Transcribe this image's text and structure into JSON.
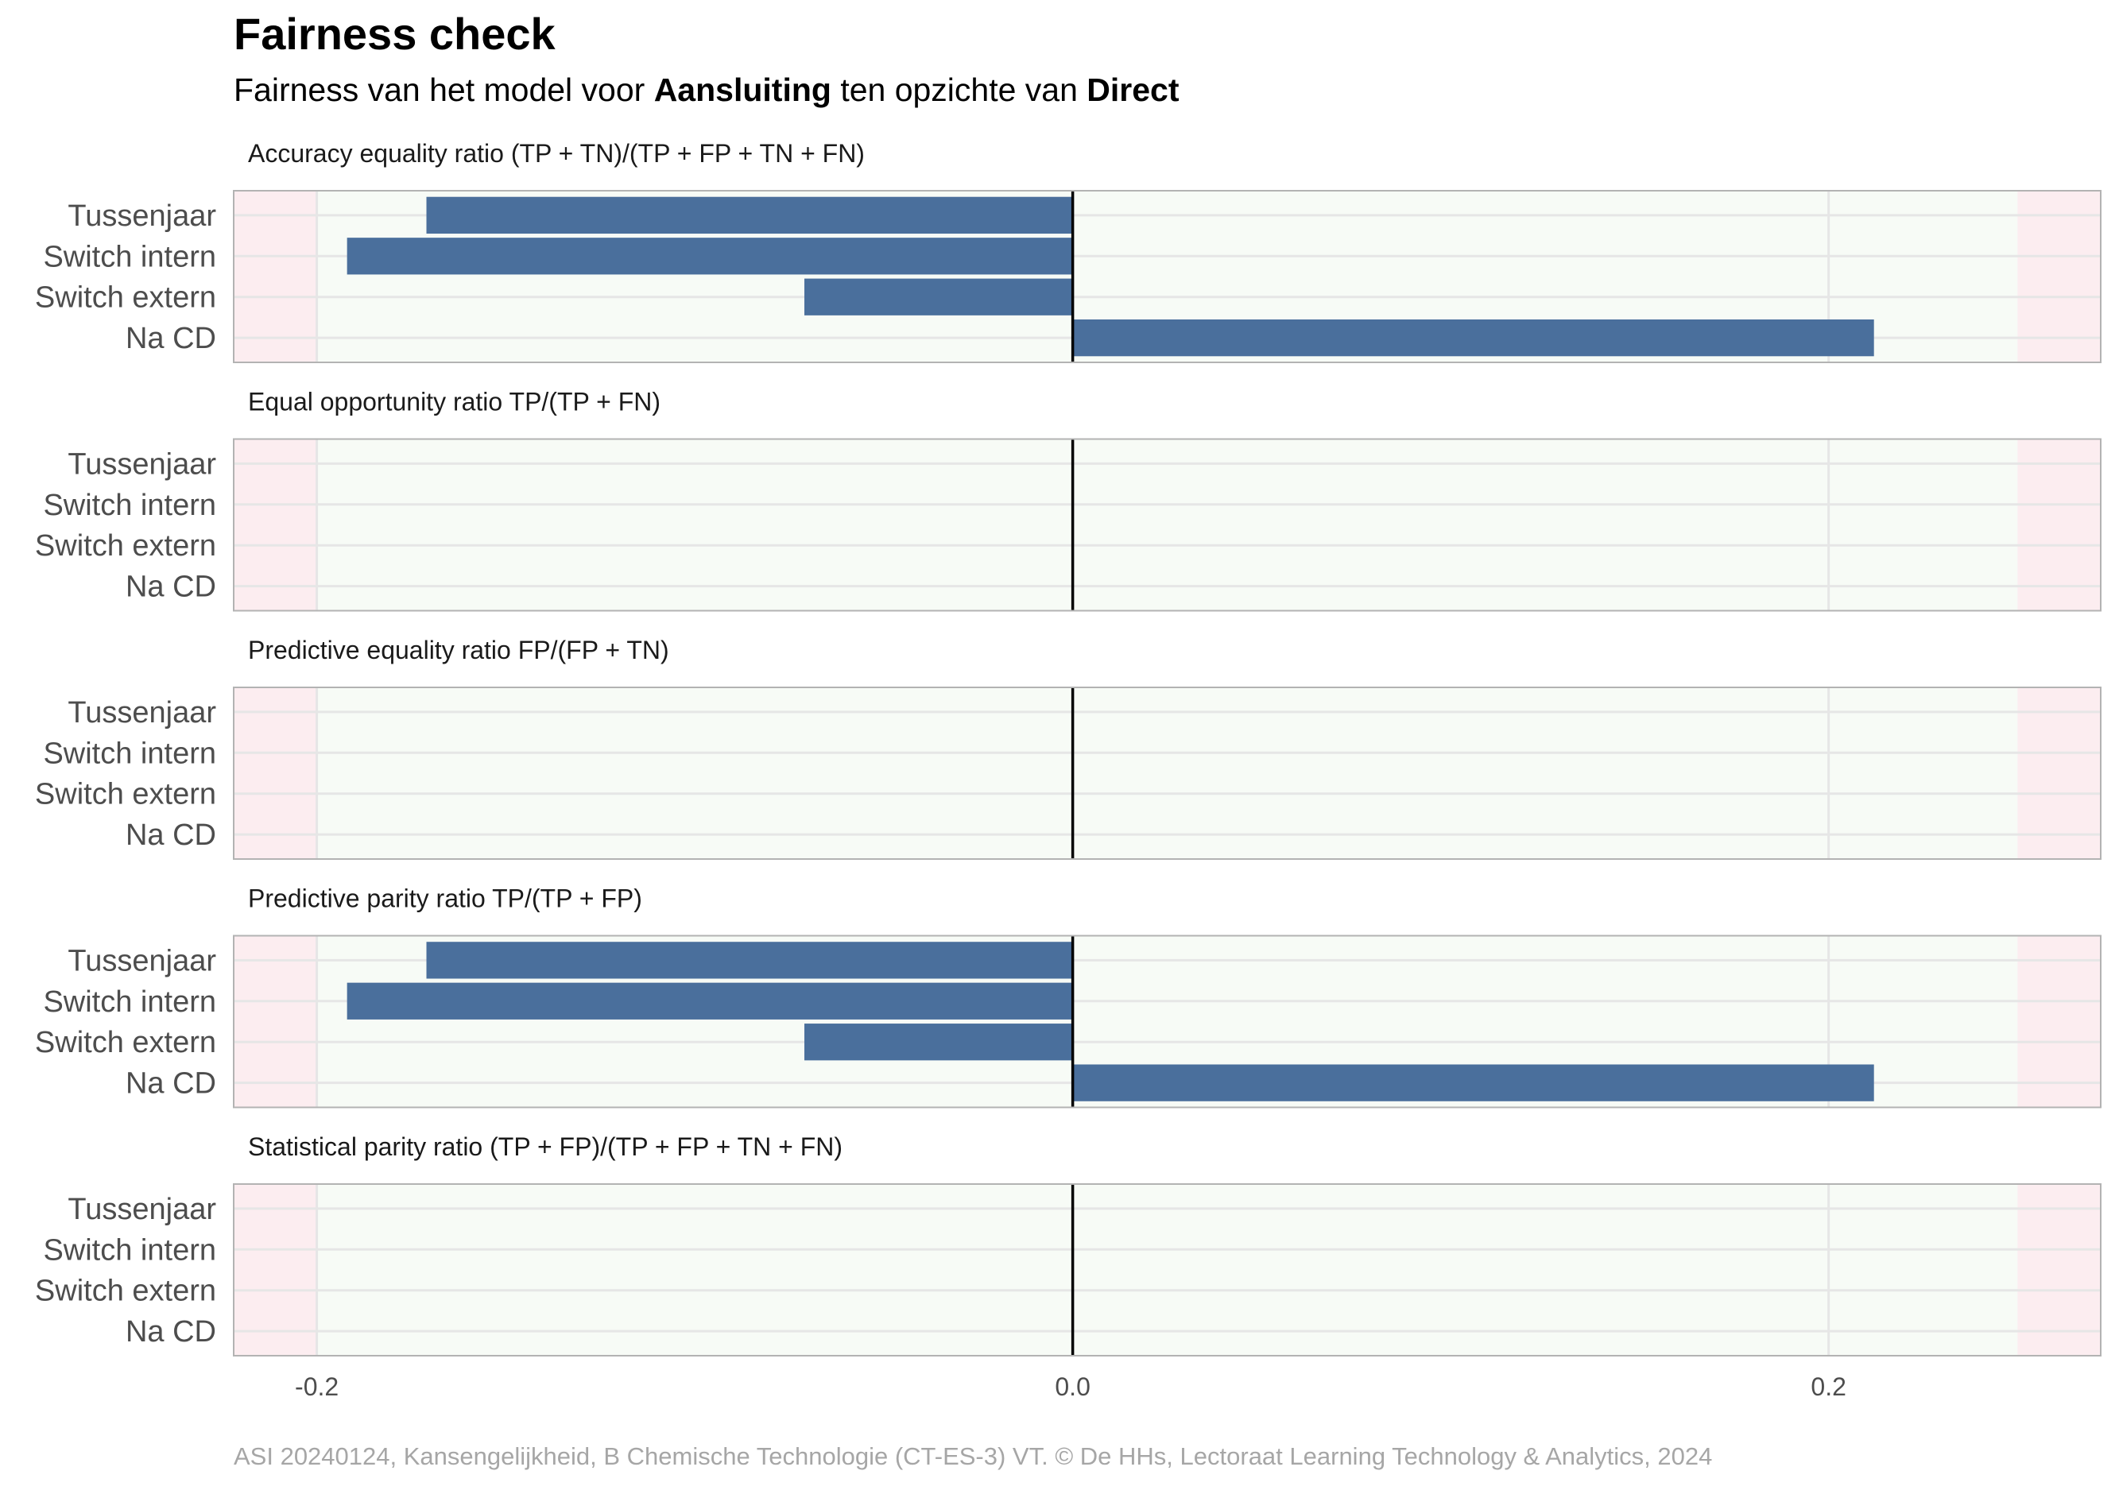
{
  "title": "Fairness check",
  "subtitle": {
    "prefix": "Fairness van het model voor ",
    "model": "Aansluiting",
    "middle": " ten opzichte van ",
    "reference": "Direct"
  },
  "caption": "ASI 20240124, Kansengelijkheid, B Chemische Technologie (CT-ES-3) VT. © De HHs, Lectoraat Learning Technology & Analytics, 2024",
  "colors": {
    "bar": "#4a6f9c",
    "fair_zone": "#f7fbf6",
    "unfair_zone": "#fcedf0",
    "zero_line": "#000000",
    "grid": "#e6e6e6",
    "panel_border": "#b3b3b3"
  },
  "chart_data": {
    "type": "bar",
    "orientation": "horizontal",
    "categories": [
      "Tussenjaar",
      "Switch intern",
      "Switch extern",
      "Na CD"
    ],
    "xlim": [
      -0.222,
      0.272
    ],
    "fair_range": [
      -0.2,
      0.25
    ],
    "x_ticks": [
      -0.2,
      0.0,
      0.2
    ],
    "x_tick_labels": [
      "-0.2",
      "0.0",
      "0.2"
    ],
    "reference_line": 0,
    "grid": true,
    "legend": "none",
    "panels": [
      {
        "label": "Accuracy equality ratio",
        "formula": "(TP + TN)/(TP + FP + TN + FN)",
        "values": [
          -0.171,
          -0.192,
          -0.071,
          0.212
        ]
      },
      {
        "label": "Equal opportunity ratio",
        "formula": "TP/(TP + FN)",
        "values": [
          null,
          null,
          null,
          null
        ]
      },
      {
        "label": "Predictive equality ratio",
        "formula": "FP/(FP + TN)",
        "values": [
          null,
          null,
          null,
          null
        ]
      },
      {
        "label": "Predictive parity ratio",
        "formula": "TP/(TP + FP)",
        "values": [
          -0.171,
          -0.192,
          -0.071,
          0.212
        ]
      },
      {
        "label": "Statistical parity ratio",
        "formula": "(TP + FP)/(TP + FP + TN + FN)",
        "values": [
          null,
          null,
          null,
          null
        ]
      }
    ]
  }
}
